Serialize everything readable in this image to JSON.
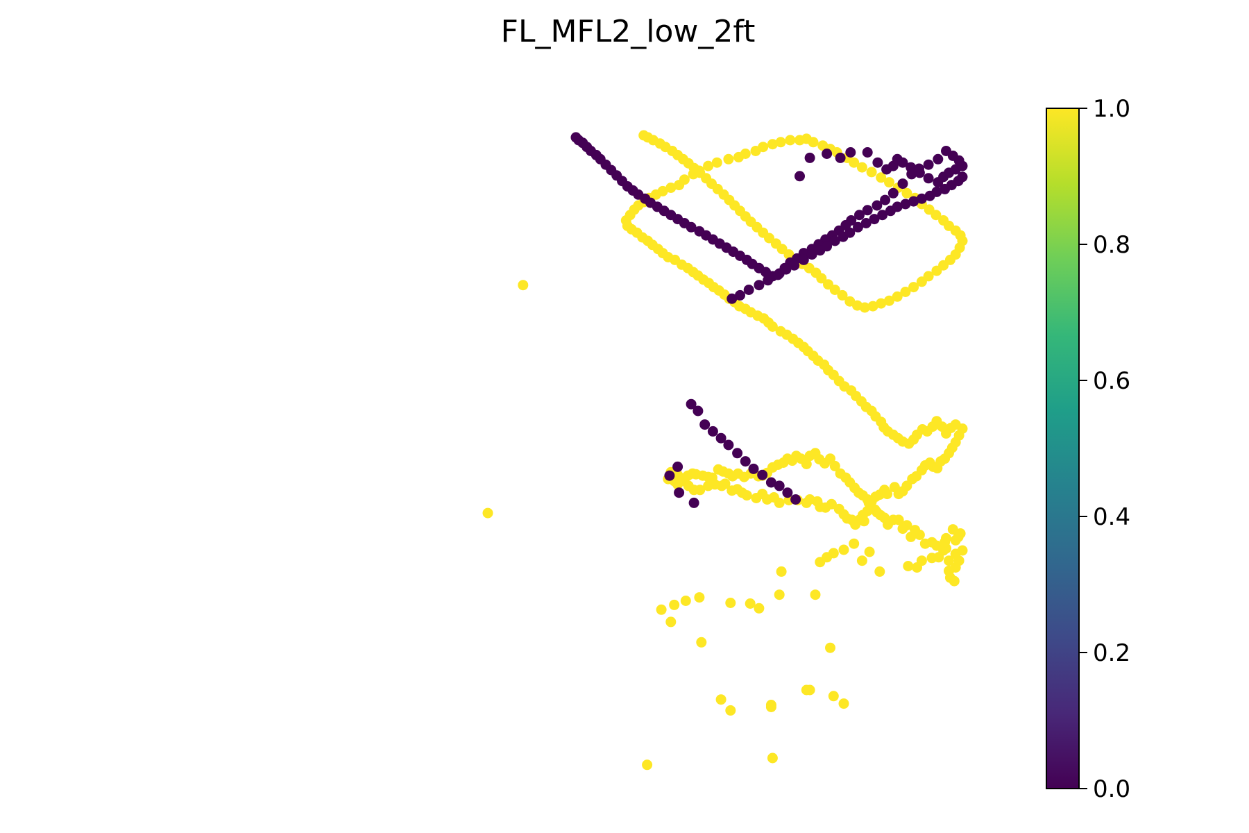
{
  "chart_data": {
    "type": "scatter",
    "title": "FL_MFL2_low_2ft",
    "axes_visible": false,
    "color_scale": {
      "name": "viridis",
      "range": [
        0.0,
        1.0
      ],
      "ticks": [
        "0.0",
        "0.2",
        "0.4",
        "0.6",
        "0.8",
        "1.0"
      ],
      "tick_values": [
        0.0,
        0.2,
        0.4,
        0.6,
        0.8,
        1.0
      ],
      "stops": [
        "#440154",
        "#482878",
        "#3e4a89",
        "#31688e",
        "#26828e",
        "#1f9e89",
        "#35b779",
        "#6ece58",
        "#b5de2b",
        "#fde725"
      ]
    },
    "x_range": [
      0,
      700
    ],
    "y_range": [
      -95,
      820
    ],
    "point_colors": {
      "0": "#440154",
      "1": "#fde725"
    },
    "points_value_1": [
      [
        0,
        460
      ],
      [
        52,
        125
      ],
      [
        235,
        830
      ],
      [
        420,
        820
      ],
      [
        358,
        750
      ],
      [
        418,
        742
      ],
      [
        344,
        734
      ],
      [
        475,
        720
      ],
      [
        510,
        729
      ],
      [
        525,
        740
      ],
      [
        505,
        658
      ],
      [
        315,
        650
      ],
      [
        470,
        720
      ],
      [
        418,
        745
      ],
      [
        270,
        620
      ],
      [
        256,
        602
      ],
      [
        275,
        595
      ],
      [
        292,
        589
      ],
      [
        312,
        584
      ],
      [
        358,
        592
      ],
      [
        400,
        600
      ],
      [
        387,
        593
      ],
      [
        430,
        580
      ],
      [
        433,
        546
      ],
      [
        483,
        580
      ],
      [
        490,
        532
      ],
      [
        500,
        525
      ],
      [
        510,
        519
      ],
      [
        525,
        514
      ],
      [
        540,
        505
      ],
      [
        552,
        530
      ],
      [
        578,
        546
      ],
      [
        563,
        517
      ],
      [
        620,
        538
      ],
      [
        633,
        540
      ],
      [
        640,
        530
      ],
      [
        655,
        526
      ],
      [
        665,
        525
      ],
      [
        672,
        515
      ],
      [
        676,
        512
      ],
      [
        680,
        545
      ],
      [
        682,
        555
      ],
      [
        688,
        560
      ],
      [
        690,
        540
      ],
      [
        695,
        530
      ],
      [
        680,
        530
      ],
      [
        690,
        520
      ],
      [
        700,
        515
      ],
      [
        690,
        500
      ],
      [
        694,
        495
      ],
      [
        697,
        490
      ],
      [
        686,
        484
      ],
      [
        676,
        497
      ],
      [
        662,
        508
      ],
      [
        674,
        503
      ],
      [
        655,
        503
      ],
      [
        645,
        505
      ],
      [
        637,
        492
      ],
      [
        624,
        495
      ],
      [
        630,
        485
      ],
      [
        618,
        478
      ],
      [
        612,
        483
      ],
      [
        606,
        470
      ],
      [
        598,
        470
      ],
      [
        590,
        477
      ],
      [
        585,
        467
      ],
      [
        579,
        463
      ],
      [
        574,
        459
      ],
      [
        571,
        455
      ],
      [
        562,
        445
      ],
      [
        560,
        457
      ],
      [
        553,
        463
      ],
      [
        548,
        470
      ],
      [
        555,
        472
      ],
      [
        542,
        477
      ],
      [
        537,
        470
      ],
      [
        530,
        468
      ],
      [
        525,
        462
      ],
      [
        518,
        454
      ],
      [
        507,
        447
      ],
      [
        498,
        452
      ],
      [
        490,
        451
      ],
      [
        486,
        443
      ],
      [
        475,
        440
      ],
      [
        470,
        445
      ],
      [
        457,
        441
      ],
      [
        444,
        441
      ],
      [
        430,
        445
      ],
      [
        422,
        437
      ],
      [
        412,
        440
      ],
      [
        405,
        432
      ],
      [
        396,
        438
      ],
      [
        382,
        434
      ],
      [
        375,
        430
      ],
      [
        368,
        425
      ],
      [
        360,
        427
      ],
      [
        350,
        417
      ],
      [
        345,
        420
      ],
      [
        335,
        418
      ],
      [
        325,
        420
      ],
      [
        313,
        426
      ],
      [
        304,
        426
      ],
      [
        296,
        420
      ],
      [
        287,
        409
      ],
      [
        280,
        404
      ],
      [
        276,
        400
      ],
      [
        270,
        400
      ],
      [
        266,
        410
      ],
      [
        275,
        413
      ],
      [
        280,
        418
      ],
      [
        289,
        413
      ],
      [
        295,
        405
      ],
      [
        302,
        402
      ],
      [
        307,
        403
      ],
      [
        317,
        405
      ],
      [
        325,
        407
      ],
      [
        331,
        408
      ],
      [
        340,
        396
      ],
      [
        347,
        399
      ],
      [
        355,
        402
      ],
      [
        361,
        406
      ],
      [
        369,
        402
      ],
      [
        378,
        407
      ],
      [
        388,
        402
      ],
      [
        399,
        406
      ],
      [
        405,
        405
      ],
      [
        412,
        401
      ],
      [
        420,
        393
      ],
      [
        428,
        389
      ],
      [
        436,
        386
      ],
      [
        442,
        380
      ],
      [
        449,
        383
      ],
      [
        455,
        376
      ],
      [
        462,
        380
      ],
      [
        470,
        388
      ],
      [
        475,
        376
      ],
      [
        483,
        372
      ],
      [
        489,
        381
      ],
      [
        497,
        387
      ],
      [
        505,
        380
      ],
      [
        512,
        391
      ],
      [
        520,
        402
      ],
      [
        528,
        408
      ],
      [
        534,
        415
      ],
      [
        541,
        423
      ],
      [
        547,
        430
      ],
      [
        553,
        434
      ],
      [
        560,
        440
      ],
      [
        566,
        443
      ],
      [
        572,
        436
      ],
      [
        578,
        433
      ],
      [
        585,
        426
      ],
      [
        589,
        432
      ],
      [
        600,
        422
      ],
      [
        606,
        432
      ],
      [
        612,
        428
      ],
      [
        618,
        420
      ],
      [
        626,
        410
      ],
      [
        632,
        406
      ],
      [
        640,
        397
      ],
      [
        645,
        390
      ],
      [
        652,
        386
      ],
      [
        657,
        392
      ],
      [
        663,
        394
      ],
      [
        668,
        384
      ],
      [
        674,
        380
      ],
      [
        680,
        372
      ],
      [
        685,
        364
      ],
      [
        690,
        356
      ],
      [
        695,
        346
      ],
      [
        700,
        336
      ],
      [
        690,
        330
      ],
      [
        683,
        335
      ],
      [
        676,
        343
      ],
      [
        670,
        333
      ],
      [
        662,
        325
      ],
      [
        656,
        333
      ],
      [
        648,
        340
      ],
      [
        641,
        337
      ],
      [
        633,
        345
      ],
      [
        628,
        352
      ],
      [
        621,
        358
      ],
      [
        612,
        355
      ],
      [
        605,
        350
      ],
      [
        598,
        345
      ],
      [
        590,
        340
      ],
      [
        584,
        334
      ],
      [
        580,
        326
      ],
      [
        572,
        318
      ],
      [
        566,
        310
      ],
      [
        558,
        304
      ],
      [
        551,
        296
      ],
      [
        543,
        288
      ],
      [
        536,
        280
      ],
      [
        526,
        274
      ],
      [
        518,
        266
      ],
      [
        510,
        257
      ],
      [
        502,
        250
      ],
      [
        496,
        242
      ],
      [
        487,
        236
      ],
      [
        480,
        229
      ],
      [
        472,
        222
      ],
      [
        466,
        216
      ],
      [
        458,
        210
      ],
      [
        450,
        204
      ],
      [
        441,
        198
      ],
      [
        432,
        193
      ],
      [
        420,
        186
      ],
      [
        414,
        180
      ],
      [
        407,
        174
      ],
      [
        398,
        170
      ],
      [
        388,
        165
      ],
      [
        380,
        160
      ],
      [
        371,
        156
      ],
      [
        364,
        150
      ],
      [
        356,
        145
      ],
      [
        349,
        139
      ],
      [
        341,
        133
      ],
      [
        333,
        128
      ],
      [
        326,
        122
      ],
      [
        318,
        117
      ],
      [
        310,
        111
      ],
      [
        303,
        106
      ],
      [
        295,
        100
      ],
      [
        286,
        95
      ],
      [
        276,
        88
      ],
      [
        266,
        84
      ],
      [
        258,
        78
      ],
      [
        251,
        72
      ],
      [
        243,
        66
      ],
      [
        236,
        60
      ],
      [
        228,
        55
      ],
      [
        220,
        48
      ],
      [
        212,
        43
      ],
      [
        206,
        38
      ],
      [
        204,
        30
      ],
      [
        210,
        22
      ],
      [
        216,
        14
      ],
      [
        222,
        8
      ],
      [
        230,
        3
      ],
      [
        238,
        -3
      ],
      [
        248,
        -8
      ],
      [
        258,
        -13
      ],
      [
        270,
        -18
      ],
      [
        282,
        -22
      ],
      [
        290,
        -30
      ],
      [
        303,
        -38
      ],
      [
        312,
        -43
      ],
      [
        325,
        -50
      ],
      [
        338,
        -55
      ],
      [
        355,
        -60
      ],
      [
        370,
        -63
      ],
      [
        380,
        -68
      ],
      [
        395,
        -72
      ],
      [
        406,
        -78
      ],
      [
        420,
        -82
      ],
      [
        432,
        -85
      ],
      [
        446,
        -88
      ],
      [
        460,
        -88
      ],
      [
        470,
        -90
      ],
      [
        480,
        -85
      ],
      [
        494,
        -80
      ],
      [
        505,
        -75
      ],
      [
        515,
        -70
      ],
      [
        530,
        -62
      ],
      [
        540,
        -55
      ],
      [
        552,
        -48
      ],
      [
        566,
        -41
      ],
      [
        580,
        -33
      ],
      [
        592,
        -26
      ],
      [
        605,
        -18
      ],
      [
        618,
        -10
      ],
      [
        630,
        -3
      ],
      [
        640,
        6
      ],
      [
        651,
        14
      ],
      [
        661,
        22
      ],
      [
        672,
        30
      ],
      [
        680,
        38
      ],
      [
        690,
        45
      ],
      [
        697,
        52
      ],
      [
        700,
        60
      ],
      [
        696,
        70
      ],
      [
        690,
        80
      ],
      [
        682,
        88
      ],
      [
        672,
        96
      ],
      [
        662,
        104
      ],
      [
        650,
        112
      ],
      [
        640,
        120
      ],
      [
        628,
        128
      ],
      [
        616,
        135
      ],
      [
        604,
        142
      ],
      [
        592,
        148
      ],
      [
        580,
        152
      ],
      [
        568,
        156
      ],
      [
        556,
        158
      ],
      [
        545,
        155
      ],
      [
        534,
        149
      ],
      [
        523,
        140
      ],
      [
        512,
        132
      ],
      [
        502,
        124
      ],
      [
        492,
        115
      ],
      [
        484,
        107
      ],
      [
        474,
        100
      ],
      [
        464,
        94
      ],
      [
        454,
        88
      ],
      [
        444,
        80
      ],
      [
        434,
        72
      ],
      [
        425,
        64
      ],
      [
        415,
        56
      ],
      [
        406,
        48
      ],
      [
        397,
        40
      ],
      [
        388,
        32
      ],
      [
        380,
        24
      ],
      [
        372,
        16
      ],
      [
        364,
        8
      ],
      [
        356,
        0
      ],
      [
        348,
        -8
      ],
      [
        339,
        -16
      ],
      [
        330,
        -24
      ],
      [
        322,
        -32
      ],
      [
        313,
        -40
      ],
      [
        304,
        -47
      ],
      [
        296,
        -54
      ],
      [
        288,
        -60
      ],
      [
        280,
        -66
      ],
      [
        272,
        -72
      ],
      [
        262,
        -78
      ],
      [
        254,
        -83
      ],
      [
        244,
        -88
      ],
      [
        236,
        -92
      ],
      [
        230,
        -95
      ]
    ],
    "points_value_0": [
      [
        460,
        -35
      ],
      [
        475,
        -62
      ],
      [
        500,
        -68
      ],
      [
        520,
        -62
      ],
      [
        535,
        -70
      ],
      [
        560,
        -70
      ],
      [
        575,
        -55
      ],
      [
        588,
        -45
      ],
      [
        598,
        -50
      ],
      [
        604,
        -60
      ],
      [
        612,
        -55
      ],
      [
        624,
        -48
      ],
      [
        637,
        -40
      ],
      [
        650,
        -32
      ],
      [
        664,
        -26
      ],
      [
        672,
        -34
      ],
      [
        680,
        -40
      ],
      [
        690,
        -45
      ],
      [
        700,
        -50
      ],
      [
        695,
        -58
      ],
      [
        686,
        -65
      ],
      [
        676,
        -72
      ],
      [
        664,
        -60
      ],
      [
        650,
        -52
      ],
      [
        636,
        -46
      ],
      [
        625,
        -38
      ],
      [
        612,
        -24
      ],
      [
        598,
        -10
      ],
      [
        586,
        0
      ],
      [
        574,
        8
      ],
      [
        560,
        15
      ],
      [
        548,
        22
      ],
      [
        536,
        30
      ],
      [
        528,
        37
      ],
      [
        518,
        45
      ],
      [
        508,
        52
      ],
      [
        498,
        58
      ],
      [
        488,
        65
      ],
      [
        478,
        72
      ],
      [
        466,
        78
      ],
      [
        456,
        86
      ],
      [
        446,
        92
      ],
      [
        438,
        100
      ],
      [
        430,
        108
      ],
      [
        420,
        112
      ],
      [
        410,
        106
      ],
      [
        400,
        100
      ],
      [
        390,
        94
      ],
      [
        382,
        88
      ],
      [
        372,
        82
      ],
      [
        362,
        76
      ],
      [
        352,
        70
      ],
      [
        342,
        64
      ],
      [
        332,
        58
      ],
      [
        322,
        52
      ],
      [
        312,
        46
      ],
      [
        300,
        40
      ],
      [
        290,
        34
      ],
      [
        280,
        28
      ],
      [
        270,
        22
      ],
      [
        260,
        16
      ],
      [
        250,
        10
      ],
      [
        240,
        4
      ],
      [
        232,
        -2
      ],
      [
        222,
        -8
      ],
      [
        214,
        -14
      ],
      [
        206,
        -20
      ],
      [
        198,
        -28
      ],
      [
        190,
        -36
      ],
      [
        182,
        -44
      ],
      [
        174,
        -52
      ],
      [
        166,
        -60
      ],
      [
        160,
        -66
      ],
      [
        152,
        -72
      ],
      [
        146,
        -78
      ],
      [
        140,
        -84
      ],
      [
        134,
        -88
      ],
      [
        130,
        -92
      ],
      [
        360,
        145
      ],
      [
        372,
        140
      ],
      [
        385,
        132
      ],
      [
        400,
        125
      ],
      [
        413,
        118
      ],
      [
        428,
        110
      ],
      [
        440,
        102
      ],
      [
        452,
        96
      ],
      [
        466,
        88
      ],
      [
        478,
        80
      ],
      [
        490,
        74
      ],
      [
        500,
        68
      ],
      [
        512,
        60
      ],
      [
        524,
        54
      ],
      [
        534,
        48
      ],
      [
        546,
        40
      ],
      [
        558,
        34
      ],
      [
        570,
        28
      ],
      [
        582,
        22
      ],
      [
        594,
        16
      ],
      [
        604,
        10
      ],
      [
        616,
        6
      ],
      [
        628,
        2
      ],
      [
        640,
        -2
      ],
      [
        652,
        -6
      ],
      [
        662,
        -12
      ],
      [
        674,
        -16
      ],
      [
        684,
        -22
      ],
      [
        694,
        -28
      ],
      [
        700,
        -34
      ],
      [
        300,
        300
      ],
      [
        310,
        310
      ],
      [
        320,
        330
      ],
      [
        332,
        340
      ],
      [
        344,
        350
      ],
      [
        355,
        360
      ],
      [
        368,
        372
      ],
      [
        380,
        384
      ],
      [
        392,
        395
      ],
      [
        405,
        404
      ],
      [
        418,
        415
      ],
      [
        430,
        420
      ],
      [
        442,
        430
      ],
      [
        454,
        440
      ],
      [
        280,
        392
      ],
      [
        268,
        405
      ],
      [
        282,
        430
      ],
      [
        304,
        445
      ]
    ]
  }
}
